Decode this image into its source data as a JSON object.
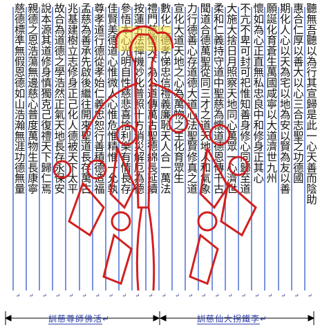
{
  "columns": [
    "聽無吾聽以為行其宣歸是此一心天善而陰助",
    "惠合仁厚以善大以心三合志聖之功德國",
    "期化人心以天為宅以地為安以賢為友以善",
    "願誕化育蒼生萬國咸寧以大道濟世九州",
    "懷如為心正直無私忠良中和修身正其心",
    "不亢不卑可封可祀惟知善身修心同歸至道",
    "大施大捨日月照察天地同心萬眾一心濟世",
    "柔和仁義持守道中聖慈為懷道德恩傳千古",
    "聞道合德萬聖從同三才之道天地人和氣象",
    "力行德善心存道德大道心法聖賢修真之道",
    "宣化大道天地之心為萬物之主化育眾生",
    "數化仁德孝悌忠信禮義廉恥天人合一萬法",
    "禮門慈懷天下為公道傳萬古聖德綿長延續",
    "按蓮五法禪機妙化普照十方消災解厄為德",
    "參悟本心光明自性慈悲喜捨利樂有情長存",
    "佳賢美德道心惟微人心惟危惟精惟一允執",
    "尊孝道行德從孝始仁義忠恕行善積德造福",
    "孟慈為善承先啟後繼往開來聖道長存萬古",
    "兆基建樹立志修身正己化人德被天下太平",
    "故合為道德之學浩然正氣天地長存永保安",
    "說本源其道修身慎獨克己復禮天下歸仁焉",
    "親德之恩浩蕩無邊慈心普度萬物生長康寧",
    "慈德標準無假恩德如山浩瀚無涯功德無量"
  ],
  "footer": {
    "left_caption": "訓慈尊師佛活",
    "right_caption": "訓慈仙大拐鐵李",
    "return_mark": "↵"
  }
}
